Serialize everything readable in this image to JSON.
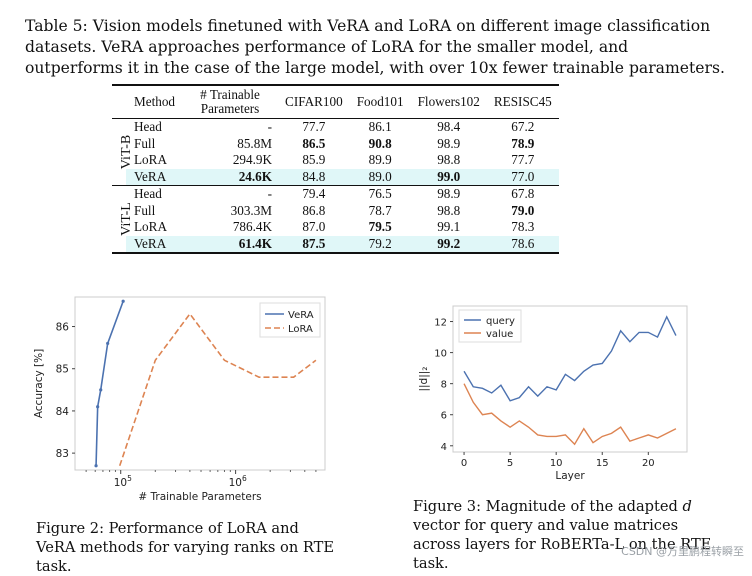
{
  "table_caption": "Table 5: Vision models finetuned with VeRA and LoRA on different image classification datasets. VeRA approaches performance of LoRA for the smaller model, and outperforms it in the case of the large model, with over 10x fewer trainable parameters.",
  "table": {
    "headers": [
      "Method",
      "# Trainable Parameters",
      "CIFAR100",
      "Food101",
      "Flowers102",
      "RESISC45"
    ],
    "groups": [
      {
        "name": "ViT-B",
        "rows": [
          {
            "method": "Head",
            "params": "-",
            "cifar": "77.7",
            "food": "86.1",
            "flowers": "98.4",
            "resisc": "67.2"
          },
          {
            "method": "Full",
            "params": "85.8M",
            "cifar": "86.5",
            "food": "90.8",
            "flowers": "98.9",
            "resisc": "78.9"
          },
          {
            "method": "LoRA",
            "params": "294.9K",
            "cifar": "85.9",
            "food": "89.9",
            "flowers": "98.8",
            "resisc": "77.7"
          },
          {
            "method": "VeRA",
            "params": "24.6K",
            "cifar": "84.8",
            "food": "89.0",
            "flowers": "99.0",
            "resisc": "77.0"
          }
        ]
      },
      {
        "name": "ViT-L",
        "rows": [
          {
            "method": "Head",
            "params": "-",
            "cifar": "79.4",
            "food": "76.5",
            "flowers": "98.9",
            "resisc": "67.8"
          },
          {
            "method": "Full",
            "params": "303.3M",
            "cifar": "86.8",
            "food": "78.7",
            "flowers": "98.8",
            "resisc": "79.0"
          },
          {
            "method": "LoRA",
            "params": "786.4K",
            "cifar": "87.0",
            "food": "79.5",
            "flowers": "99.1",
            "resisc": "78.3"
          },
          {
            "method": "VeRA",
            "params": "61.4K",
            "cifar": "87.5",
            "food": "79.2",
            "flowers": "99.2",
            "resisc": "78.6"
          }
        ]
      }
    ]
  },
  "figure2_caption": "Figure 2: Performance of LoRA and VeRA methods for varying ranks on RTE task.",
  "figure3_caption": "Figure 3: Magnitude of the adapted d vector for query and value matrices across layers for RoBERTa-L on the RTE task.",
  "watermark": "CSDN @万里鹏程转瞬至",
  "colors": {
    "vera": "#4c72b0",
    "lora": "#dd8452",
    "highlight": "#e0f7f8"
  },
  "chart_data": [
    {
      "type": "line",
      "xscale": "log",
      "xlabel": "# Trainable Parameters",
      "ylabel": "Accuracy [%]",
      "xticks": [
        "10^5",
        "10^6"
      ],
      "yticks": [
        "83",
        "84",
        "85",
        "86"
      ],
      "xlim": [
        40000,
        6000000
      ],
      "ylim": [
        82.6,
        86.7
      ],
      "legend": "top-right",
      "series": [
        {
          "name": "VeRA",
          "x": [
            61000,
            63000,
            67000,
            77000,
            105000
          ],
          "y": [
            82.7,
            84.1,
            84.5,
            85.6,
            86.6
          ]
        },
        {
          "name": "LoRA",
          "x": [
            98000,
            200000,
            400000,
            800000,
            1600000,
            3200000,
            5000000
          ],
          "y": [
            82.7,
            85.2,
            86.3,
            85.2,
            84.8,
            84.8,
            85.2
          ]
        }
      ]
    },
    {
      "type": "line",
      "xlabel": "Layer",
      "ylabel": "||d||₂",
      "xticks": [
        "0",
        "5",
        "10",
        "15",
        "20"
      ],
      "yticks": [
        "4",
        "6",
        "8",
        "10",
        "12"
      ],
      "xlim": [
        -1.2,
        24.2
      ],
      "ylim": [
        3.6,
        13.0
      ],
      "legend": "top-left",
      "series": [
        {
          "name": "query",
          "x": [
            0,
            1,
            2,
            3,
            4,
            5,
            6,
            7,
            8,
            9,
            10,
            11,
            12,
            13,
            14,
            15,
            16,
            17,
            18,
            19,
            20,
            21,
            22,
            23
          ],
          "y": [
            8.8,
            7.8,
            7.7,
            7.4,
            7.9,
            6.9,
            7.1,
            7.8,
            7.2,
            7.8,
            7.6,
            8.6,
            8.2,
            8.8,
            9.2,
            9.3,
            10.1,
            11.4,
            10.7,
            11.3,
            11.3,
            11.0,
            12.3,
            11.1
          ]
        },
        {
          "name": "value",
          "x": [
            0,
            1,
            2,
            3,
            4,
            5,
            6,
            7,
            8,
            9,
            10,
            11,
            12,
            13,
            14,
            15,
            16,
            17,
            18,
            19,
            20,
            21,
            22,
            23
          ],
          "y": [
            8.0,
            6.8,
            6.0,
            6.1,
            5.6,
            5.2,
            5.6,
            5.2,
            4.7,
            4.6,
            4.6,
            4.7,
            4.1,
            5.1,
            4.2,
            4.6,
            4.8,
            5.2,
            4.3,
            4.5,
            4.7,
            4.5,
            4.8,
            5.1
          ]
        }
      ]
    }
  ]
}
